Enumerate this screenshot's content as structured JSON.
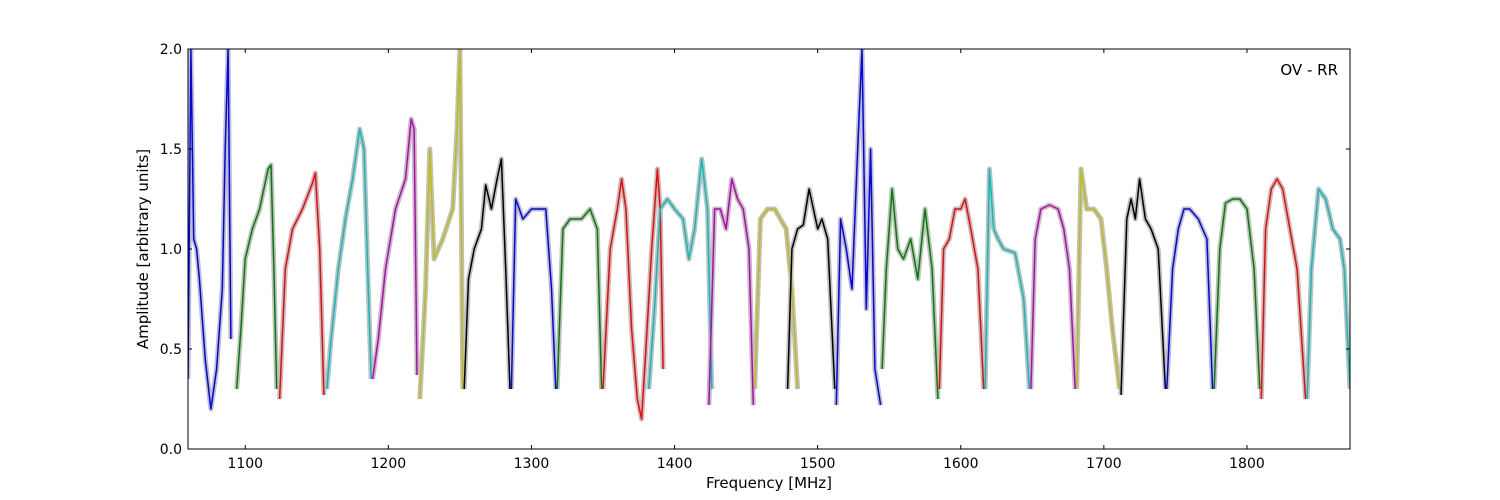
{
  "chart_data": {
    "type": "line",
    "title": "",
    "xlabel": "Frequency [MHz]",
    "ylabel": "Amplitude [arbitrary units]",
    "annotation": "OV - RR",
    "xlim": [
      1060,
      1872
    ],
    "ylim": [
      0.0,
      2.0
    ],
    "xticks": [
      1100,
      1200,
      1300,
      1400,
      1500,
      1600,
      1700,
      1800
    ],
    "xtick_labels": [
      "1100",
      "1200",
      "1300",
      "1400",
      "1500",
      "1600",
      "1700",
      "1800"
    ],
    "yticks": [
      0.0,
      0.5,
      1.0,
      1.5,
      2.0
    ],
    "ytick_labels": [
      "0.0",
      "0.5",
      "1.0",
      "1.5",
      "2.0"
    ],
    "grid": false,
    "background_color": "#c0c0c0",
    "subband_colors": [
      "#0000ff",
      "#008000",
      "#ff0000",
      "#00bfbf",
      "#bf00bf",
      "#bfbf00",
      "#000000"
    ],
    "subbands": [
      {
        "color": "#0000ff",
        "x": [
          1060,
          1062,
          1064,
          1066,
          1068,
          1072,
          1076,
          1080,
          1084,
          1086,
          1088,
          1090
        ],
        "y": [
          0.35,
          2.0,
          1.05,
          1.0,
          0.85,
          0.45,
          0.2,
          0.4,
          0.8,
          1.5,
          2.0,
          0.55
        ]
      },
      {
        "color": "#008000",
        "x": [
          1094,
          1097,
          1100,
          1105,
          1110,
          1116,
          1118,
          1120,
          1122
        ],
        "y": [
          0.3,
          0.6,
          0.95,
          1.1,
          1.2,
          1.4,
          1.42,
          0.9,
          0.3
        ]
      },
      {
        "color": "#ff0000",
        "x": [
          1124,
          1128,
          1133,
          1140,
          1147,
          1149,
          1152,
          1155
        ],
        "y": [
          0.25,
          0.9,
          1.1,
          1.2,
          1.33,
          1.38,
          1.0,
          0.27
        ]
      },
      {
        "color": "#00bfbf",
        "x": [
          1157,
          1160,
          1165,
          1170,
          1175,
          1180,
          1183,
          1186,
          1188
        ],
        "y": [
          0.3,
          0.55,
          0.9,
          1.15,
          1.35,
          1.6,
          1.5,
          0.8,
          0.35
        ]
      },
      {
        "color": "#bf00bf",
        "x": [
          1189,
          1193,
          1198,
          1205,
          1212,
          1216,
          1218,
          1220
        ],
        "y": [
          0.35,
          0.55,
          0.9,
          1.2,
          1.35,
          1.65,
          1.6,
          0.37
        ]
      },
      {
        "color": "#bfbf00",
        "x": [
          1222,
          1226,
          1229,
          1232,
          1238,
          1245,
          1248,
          1250,
          1252
        ],
        "y": [
          0.25,
          0.8,
          1.5,
          0.95,
          1.05,
          1.2,
          1.6,
          2.0,
          0.3
        ]
      },
      {
        "color": "#000000",
        "x": [
          1253,
          1256,
          1260,
          1265,
          1268,
          1272,
          1276,
          1279,
          1282,
          1285
        ],
        "y": [
          0.3,
          0.85,
          1.0,
          1.1,
          1.32,
          1.2,
          1.35,
          1.45,
          0.9,
          0.3
        ]
      },
      {
        "color": "#0000ff",
        "x": [
          1286,
          1289,
          1294,
          1300,
          1305,
          1310,
          1314,
          1317
        ],
        "y": [
          0.3,
          1.25,
          1.15,
          1.2,
          1.2,
          1.2,
          0.8,
          0.3
        ]
      },
      {
        "color": "#008000",
        "x": [
          1318,
          1322,
          1327,
          1335,
          1341,
          1346,
          1349
        ],
        "y": [
          0.3,
          1.1,
          1.15,
          1.15,
          1.2,
          1.1,
          0.3
        ]
      },
      {
        "color": "#ff0000",
        "x": [
          1350,
          1355,
          1360,
          1363,
          1366,
          1370,
          1374,
          1377,
          1380,
          1384,
          1388,
          1390,
          1392
        ],
        "y": [
          0.3,
          1.0,
          1.2,
          1.35,
          1.2,
          0.6,
          0.25,
          0.15,
          0.5,
          1.0,
          1.4,
          1.2,
          0.4
        ]
      },
      {
        "color": "#00bfbf",
        "x": [
          1382,
          1386,
          1390,
          1395,
          1400,
          1406,
          1410,
          1414,
          1419,
          1423,
          1426
        ],
        "y": [
          0.3,
          0.7,
          1.2,
          1.25,
          1.2,
          1.15,
          0.95,
          1.1,
          1.45,
          1.2,
          0.3
        ]
      },
      {
        "color": "#bf00bf",
        "x": [
          1424,
          1428,
          1432,
          1436,
          1440,
          1444,
          1448,
          1452,
          1455
        ],
        "y": [
          0.22,
          1.2,
          1.2,
          1.1,
          1.35,
          1.25,
          1.2,
          1.0,
          0.22
        ]
      },
      {
        "color": "#bfbf00",
        "x": [
          1456,
          1460,
          1465,
          1470,
          1474,
          1478,
          1482,
          1486
        ],
        "y": [
          0.3,
          1.15,
          1.2,
          1.2,
          1.15,
          1.1,
          0.8,
          0.3
        ]
      },
      {
        "color": "#000000",
        "x": [
          1479,
          1482,
          1486,
          1490,
          1494,
          1497,
          1500,
          1503,
          1507,
          1512
        ],
        "y": [
          0.3,
          1.0,
          1.1,
          1.12,
          1.3,
          1.2,
          1.1,
          1.15,
          1.05,
          0.3
        ]
      },
      {
        "color": "#0000ff",
        "x": [
          1513,
          1516,
          1520,
          1524,
          1528,
          1531,
          1534,
          1537,
          1540,
          1544
        ],
        "y": [
          0.22,
          1.15,
          1.0,
          0.8,
          1.5,
          2.0,
          0.7,
          1.5,
          0.4,
          0.22
        ]
      },
      {
        "color": "#008000",
        "x": [
          1545,
          1548,
          1552,
          1556,
          1560,
          1565,
          1570,
          1575,
          1580,
          1584
        ],
        "y": [
          0.4,
          0.9,
          1.3,
          1.0,
          0.95,
          1.05,
          0.85,
          1.2,
          0.9,
          0.25
        ]
      },
      {
        "color": "#ff0000",
        "x": [
          1585,
          1588,
          1592,
          1596,
          1600,
          1603,
          1607,
          1612,
          1616
        ],
        "y": [
          0.3,
          1.0,
          1.05,
          1.2,
          1.2,
          1.25,
          1.1,
          0.9,
          0.3
        ]
      },
      {
        "color": "#00bfbf",
        "x": [
          1617,
          1620,
          1623,
          1626,
          1630,
          1638,
          1644,
          1648
        ],
        "y": [
          0.3,
          1.4,
          1.1,
          1.05,
          1.0,
          0.98,
          0.75,
          0.3
        ]
      },
      {
        "color": "#bf00bf",
        "x": [
          1649,
          1652,
          1656,
          1662,
          1668,
          1672,
          1676,
          1680
        ],
        "y": [
          0.3,
          1.05,
          1.2,
          1.22,
          1.2,
          1.1,
          0.9,
          0.3
        ]
      },
      {
        "color": "#bfbf00",
        "x": [
          1681,
          1684,
          1688,
          1693,
          1698,
          1702,
          1706,
          1711
        ],
        "y": [
          0.3,
          1.4,
          1.2,
          1.2,
          1.15,
          0.9,
          0.6,
          0.3
        ]
      },
      {
        "color": "#000000",
        "x": [
          1712,
          1716,
          1719,
          1722,
          1725,
          1729,
          1733,
          1738,
          1743
        ],
        "y": [
          0.27,
          1.15,
          1.25,
          1.15,
          1.35,
          1.15,
          1.1,
          1.0,
          0.3
        ]
      },
      {
        "color": "#0000ff",
        "x": [
          1744,
          1748,
          1752,
          1756,
          1760,
          1766,
          1772,
          1776
        ],
        "y": [
          0.3,
          0.9,
          1.1,
          1.2,
          1.2,
          1.15,
          1.05,
          0.3
        ]
      },
      {
        "color": "#008000",
        "x": [
          1777,
          1781,
          1785,
          1790,
          1795,
          1800,
          1805,
          1809
        ],
        "y": [
          0.3,
          1.0,
          1.23,
          1.25,
          1.25,
          1.2,
          0.9,
          0.3
        ]
      },
      {
        "color": "#ff0000",
        "x": [
          1810,
          1813,
          1817,
          1821,
          1825,
          1830,
          1835,
          1841
        ],
        "y": [
          0.25,
          1.1,
          1.3,
          1.35,
          1.3,
          1.1,
          0.9,
          0.25
        ]
      },
      {
        "color": "#00bfbf",
        "x": [
          1842,
          1845,
          1850,
          1855,
          1860,
          1865,
          1868,
          1872
        ],
        "y": [
          0.25,
          0.9,
          1.3,
          1.25,
          1.1,
          1.05,
          0.9,
          0.3
        ]
      }
    ]
  }
}
